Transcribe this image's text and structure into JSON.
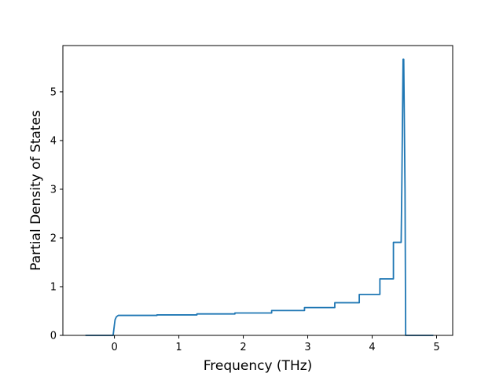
{
  "chart_data": {
    "type": "line",
    "title": "",
    "xlabel": "Frequency (THz)",
    "ylabel": "Partial Density of States",
    "xlim": [
      -0.8,
      5.25
    ],
    "ylim": [
      0,
      5.95
    ],
    "xticks": [
      0,
      1,
      2,
      3,
      4,
      5
    ],
    "yticks": [
      0,
      1,
      2,
      3,
      4,
      5
    ],
    "grid": false,
    "legend": "none",
    "series": [
      {
        "color": "#1f77b4",
        "x": [
          -0.45,
          -0.02,
          0.0,
          0.01,
          0.03,
          0.06,
          0.66,
          0.66,
          1.28,
          1.28,
          1.87,
          1.87,
          2.44,
          2.44,
          2.95,
          2.95,
          3.42,
          3.42,
          3.8,
          3.8,
          4.12,
          4.12,
          4.33,
          4.33,
          4.45,
          4.46,
          4.48,
          4.49,
          4.51,
          4.52,
          4.95
        ],
        "y": [
          0,
          0,
          0.22,
          0.32,
          0.38,
          0.41,
          0.41,
          0.42,
          0.42,
          0.44,
          0.44,
          0.46,
          0.46,
          0.51,
          0.51,
          0.57,
          0.57,
          0.67,
          0.67,
          0.84,
          0.84,
          1.16,
          1.16,
          1.91,
          1.91,
          3.0,
          5.67,
          5.67,
          3.0,
          0,
          0
        ]
      }
    ]
  }
}
